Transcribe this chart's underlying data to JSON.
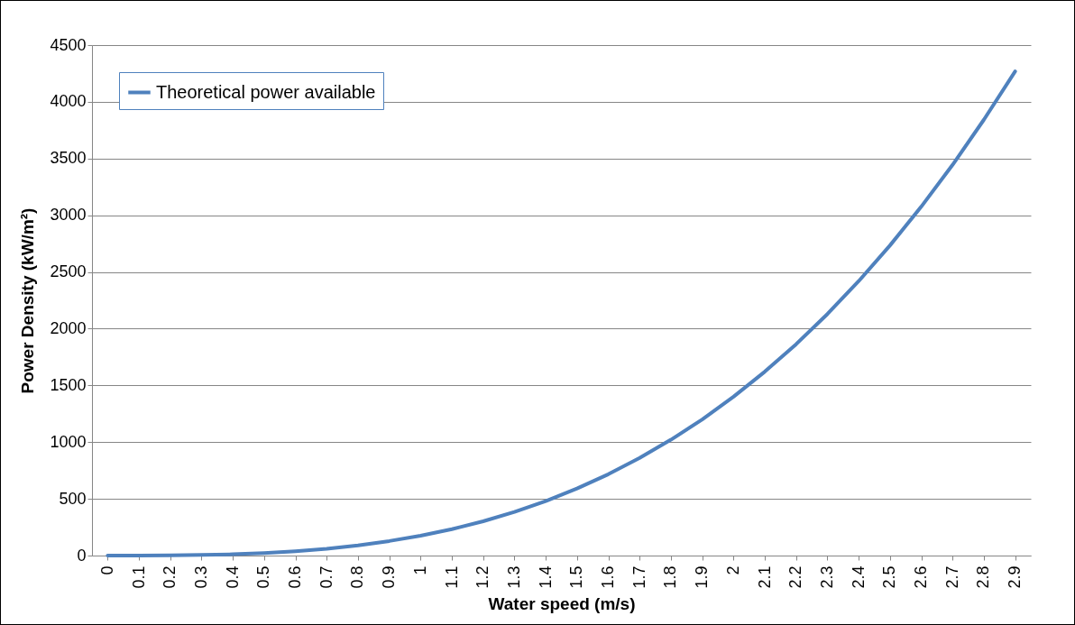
{
  "chart_data": {
    "type": "line",
    "xlabel": "Water speed (m/s)",
    "ylabel": "Power Density (kW/m²)",
    "categories": [
      "0",
      "0.1",
      "0.2",
      "0.3",
      "0.4",
      "0.5",
      "0.6",
      "0.7",
      "0.8",
      "0.9",
      "1",
      "1.1",
      "1.2",
      "1.3",
      "1.4",
      "1.5",
      "1.6",
      "1.7",
      "1.8",
      "1.9",
      "2",
      "2.1",
      "2.2",
      "2.3",
      "2.4",
      "2.5",
      "2.6",
      "2.7",
      "2.8",
      "2.9"
    ],
    "series": [
      {
        "name": "Theoretical power available",
        "color": "#4f81bd",
        "values": [
          0,
          0,
          1,
          5,
          11,
          22,
          38,
          60,
          90,
          128,
          175,
          233,
          302,
          384,
          480,
          591,
          717,
          860,
          1021,
          1200,
          1400,
          1621,
          1863,
          2129,
          2419,
          2734,
          3076,
          3444,
          3842,
          4268
        ]
      }
    ],
    "ylim": [
      0,
      4500
    ],
    "yticks": [
      0,
      500,
      1000,
      1500,
      2000,
      2500,
      3000,
      3500,
      4000,
      4500
    ],
    "grid": "y",
    "legend": "top left"
  }
}
